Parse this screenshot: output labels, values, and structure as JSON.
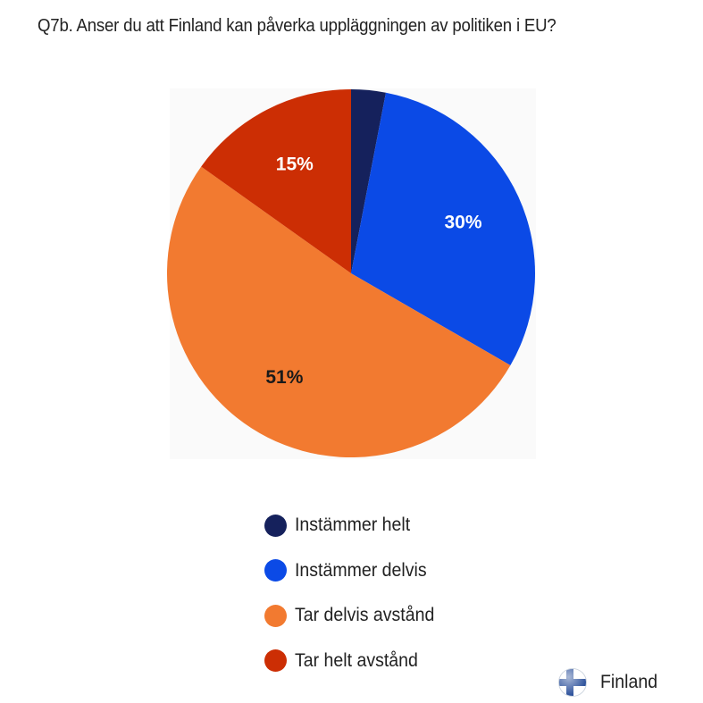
{
  "chart_data": {
    "type": "pie",
    "title": "Q7b. Anser du att Finland kan påverka uppläggningen av politiken i EU?",
    "categories": [
      "Instämmer helt",
      "Instämmer delvis",
      "Tar delvis avstånd",
      "Tar helt avstånd"
    ],
    "values": [
      3,
      30,
      51,
      15
    ],
    "data_labels": [
      "",
      "30%",
      "51%",
      "15%"
    ],
    "colors": [
      "#15215c",
      "#0b4ae6",
      "#f27a30",
      "#cc2e04"
    ],
    "label_colors": [
      "#ffffff",
      "#ffffff",
      "#1a1a1a",
      "#ffffff"
    ],
    "legend_position": "bottom"
  },
  "country": {
    "label": "Finland",
    "flag_icon": "finland-flag-icon"
  }
}
